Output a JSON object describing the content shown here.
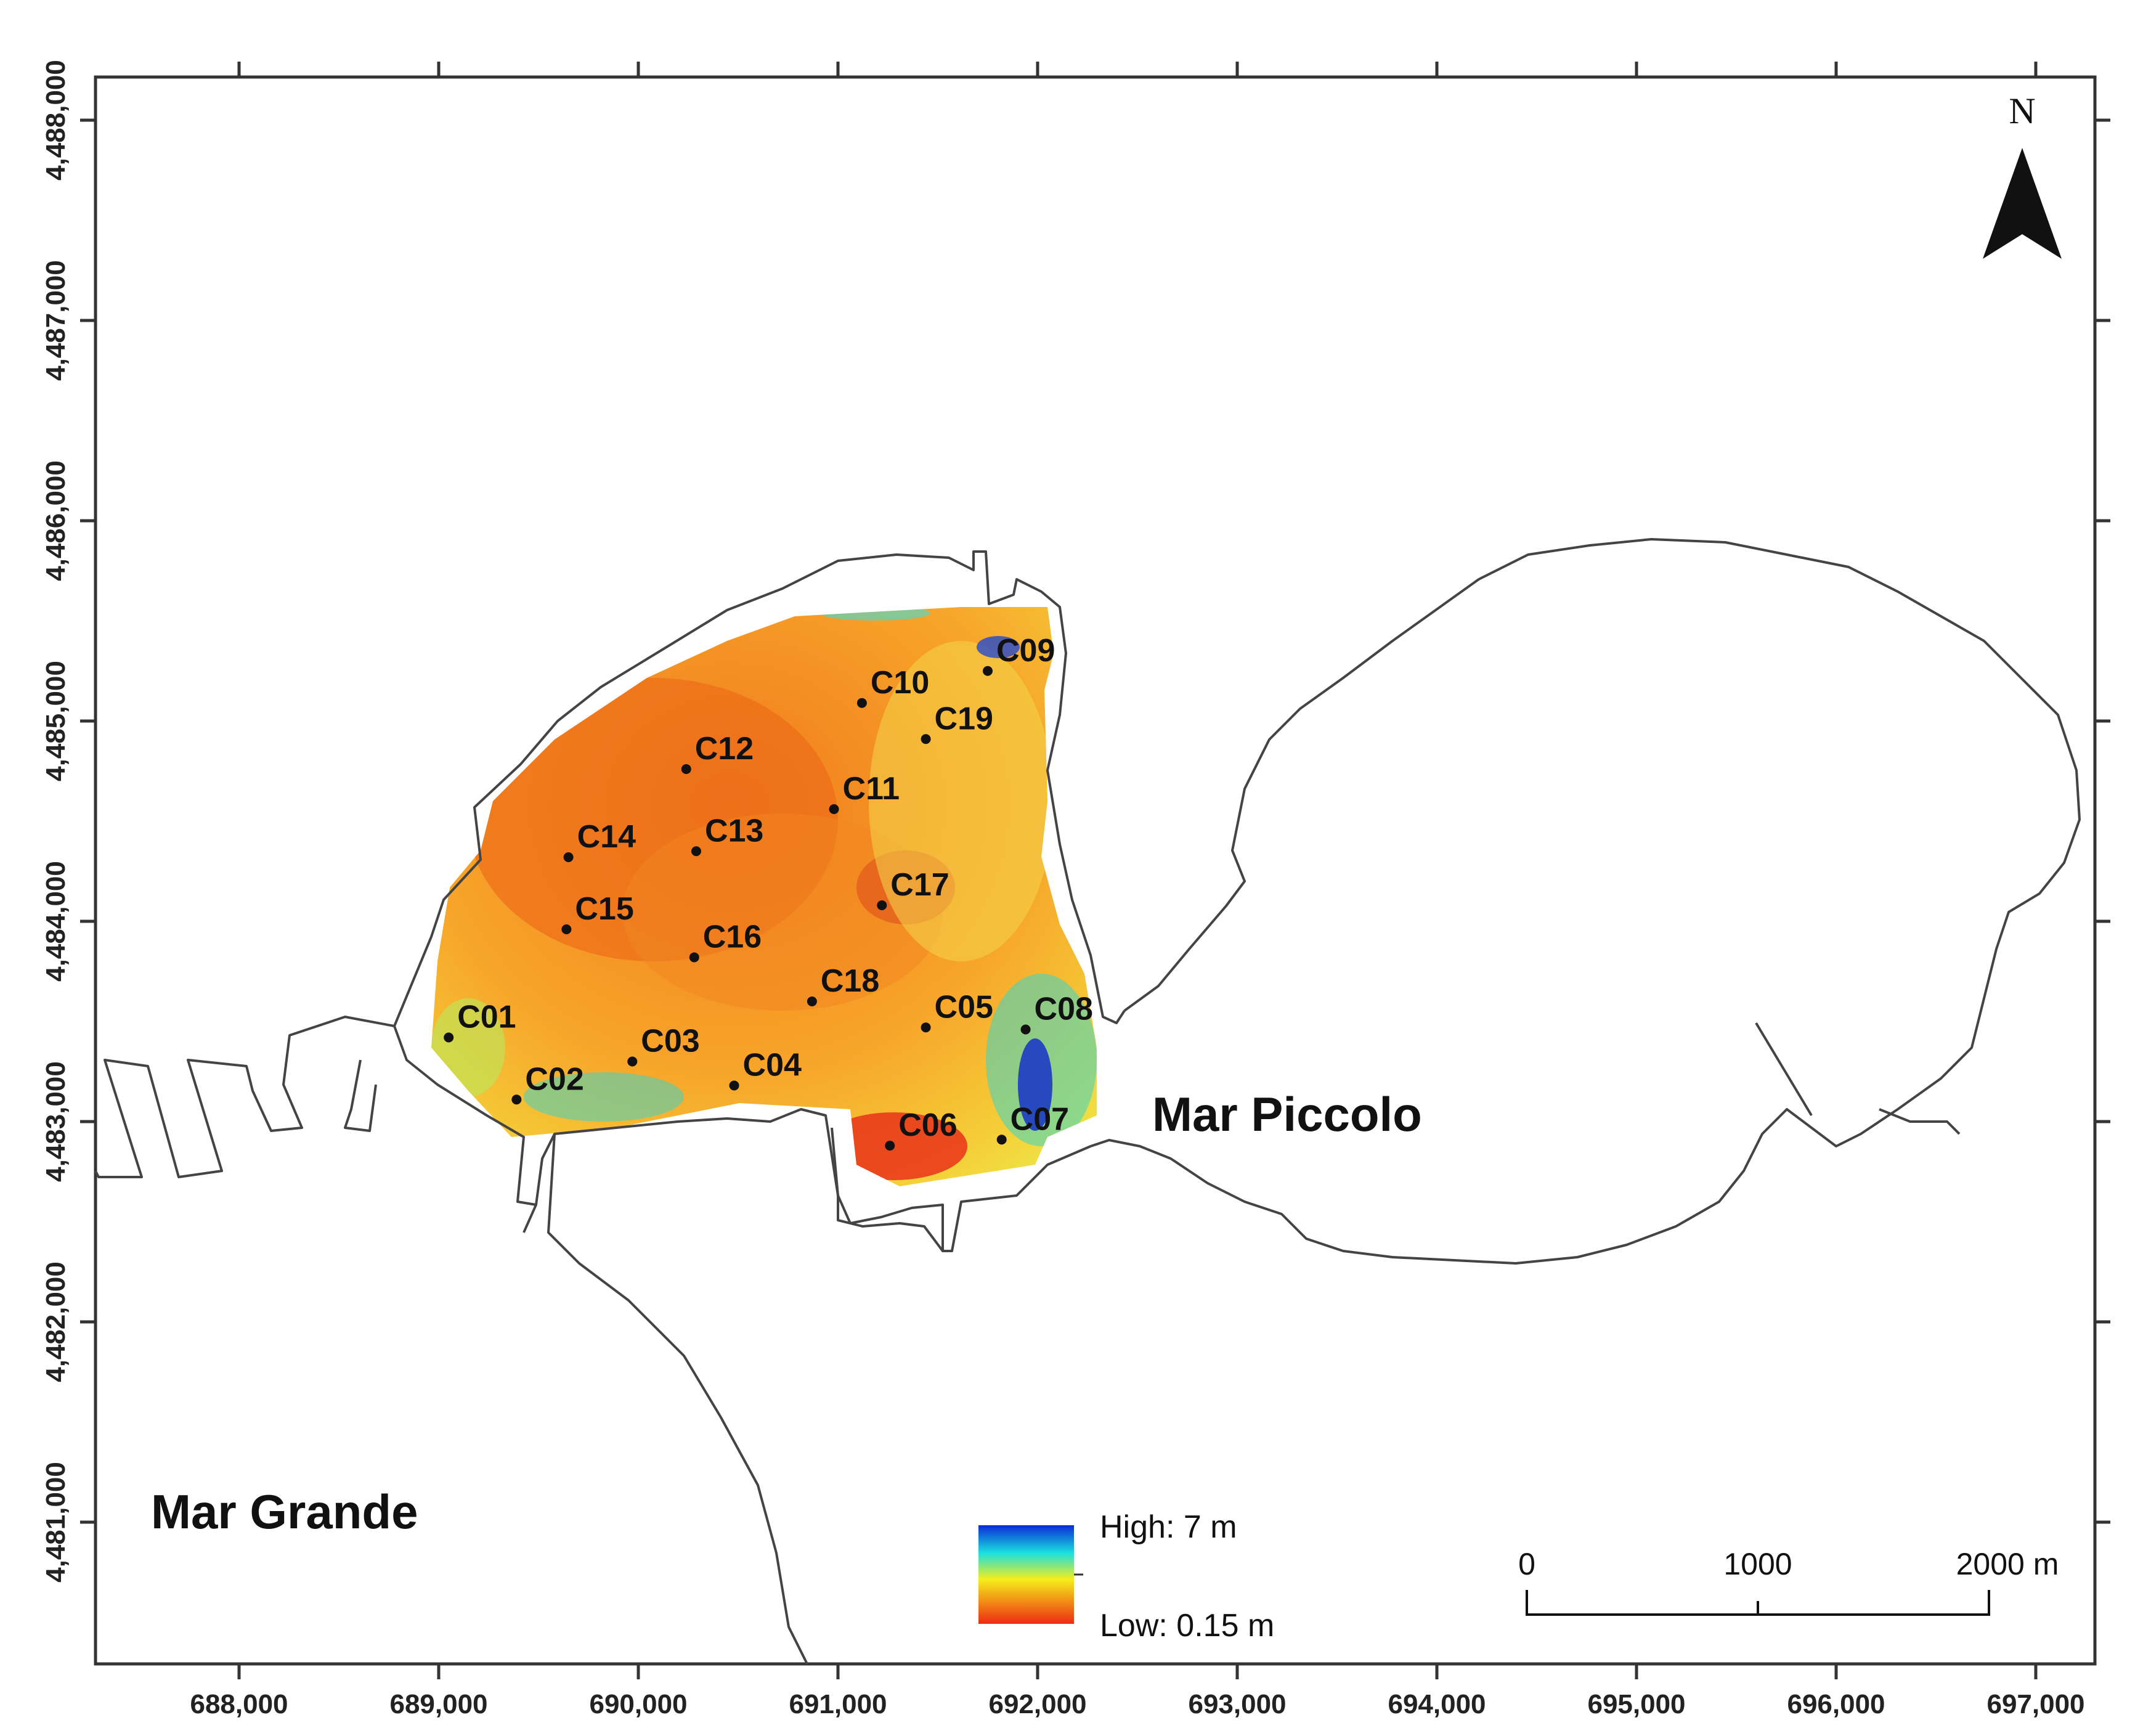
{
  "map": {
    "x_ticks": [
      "688,000",
      "689,000",
      "690,000",
      "691,000",
      "692,000",
      "693,000",
      "694,000",
      "695,000",
      "696,000",
      "697,000"
    ],
    "y_ticks": [
      "4,488,000",
      "4,487,000",
      "4,486,000",
      "4,485,000",
      "4,484,000",
      "4,483,000",
      "4,482,000",
      "4,481,000"
    ],
    "stations": [
      {
        "id": "C01",
        "x": 689050,
        "y": 4483420
      },
      {
        "id": "C02",
        "x": 689390,
        "y": 4483110
      },
      {
        "id": "C03",
        "x": 689970,
        "y": 4483300
      },
      {
        "id": "C04",
        "x": 690480,
        "y": 4483180
      },
      {
        "id": "C05",
        "x": 691440,
        "y": 4483470
      },
      {
        "id": "C06",
        "x": 691260,
        "y": 4482880
      },
      {
        "id": "C07",
        "x": 691820,
        "y": 4482910
      },
      {
        "id": "C08",
        "x": 691940,
        "y": 4483460
      },
      {
        "id": "C09",
        "x": 691750,
        "y": 4485250
      },
      {
        "id": "C10",
        "x": 691120,
        "y": 4485090
      },
      {
        "id": "C11",
        "x": 690980,
        "y": 4484560
      },
      {
        "id": "C12",
        "x": 690240,
        "y": 4484760
      },
      {
        "id": "C13",
        "x": 690290,
        "y": 4484350
      },
      {
        "id": "C14",
        "x": 689650,
        "y": 4484320
      },
      {
        "id": "C15",
        "x": 689640,
        "y": 4483960
      },
      {
        "id": "C16",
        "x": 690280,
        "y": 4483820
      },
      {
        "id": "C17",
        "x": 691220,
        "y": 4484080
      },
      {
        "id": "C18",
        "x": 690870,
        "y": 4483600
      },
      {
        "id": "C19",
        "x": 691440,
        "y": 4484910
      }
    ],
    "place_labels": {
      "mar_piccolo": "Mar Piccolo",
      "mar_grande": "Mar Grande"
    },
    "north_letter": "N",
    "legend": {
      "high_label": "High: 7 m",
      "low_label": "Low: 0.15 m",
      "colors": [
        "#0a2ad6",
        "#19d2e8",
        "#f2ee16",
        "#ee2a12"
      ]
    },
    "scale_bar": {
      "labels": [
        "0",
        "1000",
        "2000 m"
      ]
    },
    "colors": {
      "frame": "#333333",
      "coast": "#444444",
      "point": "#111111"
    }
  }
}
